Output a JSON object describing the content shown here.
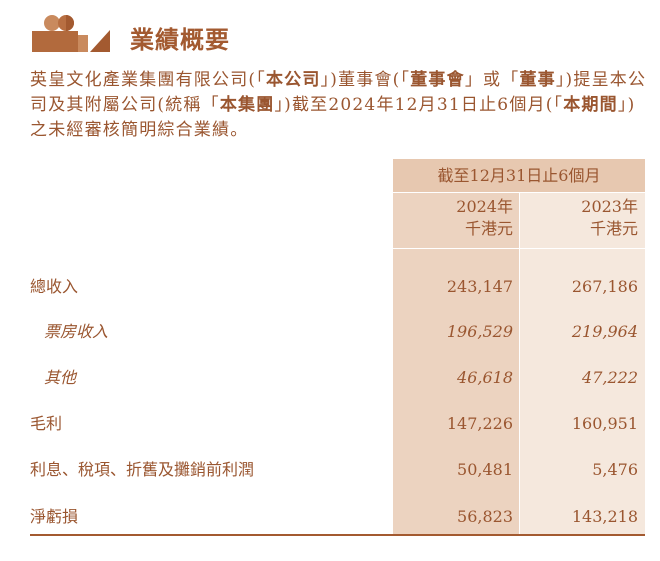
{
  "title": "業績概要",
  "intro": [
    {
      "t": "英皇文化產業集團有限公司(「",
      "b": false
    },
    {
      "t": "本公司",
      "b": true
    },
    {
      "t": "」)董事會(「",
      "b": false
    },
    {
      "t": "董事會",
      "b": true
    },
    {
      "t": "」或「",
      "b": false
    },
    {
      "t": "董事",
      "b": true
    },
    {
      "t": "」)提呈本公司及其附屬公司(統稱「",
      "b": false
    },
    {
      "t": "本集團",
      "b": true
    },
    {
      "t": "」)截至2024年12月31日止6個月(「",
      "b": false
    },
    {
      "t": "本期間",
      "b": true
    },
    {
      "t": "」)之未經審核簡明綜合業績。",
      "b": false
    }
  ],
  "table": {
    "period_header": "截至12月31日止6個月",
    "columns": [
      {
        "year": "2024年",
        "unit": "千港元"
      },
      {
        "year": "2023年",
        "unit": "千港元"
      }
    ],
    "rows": [
      {
        "label": "總收入",
        "v2024": "243,147",
        "v2023": "267,186",
        "sub": false
      },
      {
        "label": "票房收入",
        "v2024": "196,529",
        "v2023": "219,964",
        "sub": true
      },
      {
        "label": "其他",
        "v2024": "46,618",
        "v2023": "47,222",
        "sub": true
      },
      {
        "label": "毛利",
        "v2024": "147,226",
        "v2023": "160,951",
        "sub": false
      },
      {
        "label": "利息、稅項、折舊及攤銷前利潤",
        "v2024": "50,481",
        "v2023": "5,476",
        "sub": false
      },
      {
        "label": "淨虧損",
        "v2024": "56,823",
        "v2023": "143,218",
        "sub": false
      }
    ]
  },
  "colors": {
    "accent": "#a35a30",
    "header_bg": "#e7c8b0",
    "col2024_bg": "#ecd3c0",
    "col2023_bg": "#f5e8dd"
  }
}
